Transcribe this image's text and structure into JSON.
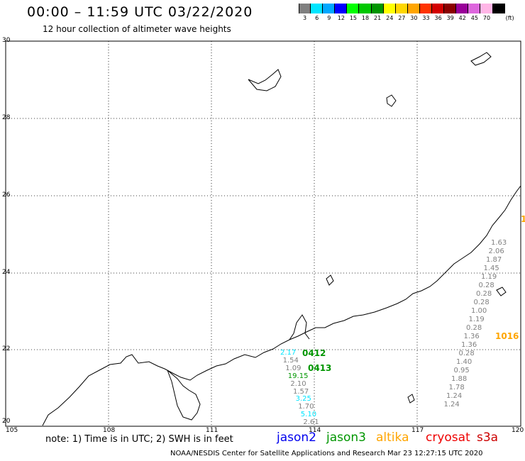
{
  "header": {
    "title": "00:00 – 11:59 UTC 03/22/2020",
    "subtitle": "12 hour collection of altimeter wave heights"
  },
  "legend": {
    "unit": "(ft)",
    "bins": [
      {
        "label": "3",
        "color": "#808080"
      },
      {
        "label": "6",
        "color": "#00e5ff"
      },
      {
        "label": "9",
        "color": "#00a8ff"
      },
      {
        "label": "12",
        "color": "#0000ff"
      },
      {
        "label": "15",
        "color": "#00ff00"
      },
      {
        "label": "18",
        "color": "#00c800"
      },
      {
        "label": "21",
        "color": "#009600"
      },
      {
        "label": "24",
        "color": "#ffff00"
      },
      {
        "label": "27",
        "color": "#ffd700"
      },
      {
        "label": "30",
        "color": "#ffa500"
      },
      {
        "label": "33",
        "color": "#ff3300"
      },
      {
        "label": "36",
        "color": "#d40000"
      },
      {
        "label": "39",
        "color": "#8b0000"
      },
      {
        "label": "42",
        "color": "#990099"
      },
      {
        "label": "45",
        "color": "#dd66dd"
      },
      {
        "label": "70",
        "color": "#ffb6e6"
      },
      {
        "label": "",
        "color": "#000000"
      }
    ]
  },
  "map": {
    "lon_ticks": [
      "105",
      "108",
      "111",
      "114",
      "117",
      "120"
    ],
    "lat_ticks": [
      "30",
      "28",
      "26",
      "24",
      "22",
      "20"
    ],
    "lon_range": [
      105,
      120
    ],
    "lat_range": [
      20,
      30
    ],
    "grid": true
  },
  "tracks": {
    "passes": [
      {
        "label": "0412",
        "color": "#009600"
      },
      {
        "label": "0413",
        "color": "#009600"
      },
      {
        "label": "1016",
        "color": "#ffa500"
      },
      {
        "label": "1",
        "color": "#ffa500"
      }
    ],
    "track_a": [
      {
        "v": "2.17",
        "c": "#00e5ff"
      },
      {
        "v": "1.54",
        "c": "#808080"
      },
      {
        "v": "1.09",
        "c": "#808080"
      },
      {
        "v": "19.15",
        "c": "#009600"
      },
      {
        "v": "2.10",
        "c": "#808080"
      },
      {
        "v": "1.57",
        "c": "#808080"
      },
      {
        "v": "3.25",
        "c": "#00e5ff"
      },
      {
        "v": "1.70",
        "c": "#808080"
      },
      {
        "v": "5.10",
        "c": "#00e5ff"
      },
      {
        "v": "2.61",
        "c": "#808080"
      }
    ],
    "track_b": [
      {
        "v": "1.63",
        "c": "#808080"
      },
      {
        "v": "2.06",
        "c": "#808080"
      },
      {
        "v": "1.87",
        "c": "#808080"
      },
      {
        "v": "1.45",
        "c": "#808080"
      },
      {
        "v": "1.19",
        "c": "#808080"
      },
      {
        "v": "0.28",
        "c": "#808080"
      },
      {
        "v": "0.28",
        "c": "#808080"
      },
      {
        "v": "0.28",
        "c": "#808080"
      },
      {
        "v": "1.00",
        "c": "#808080"
      },
      {
        "v": "1.19",
        "c": "#808080"
      },
      {
        "v": "0.28",
        "c": "#808080"
      },
      {
        "v": "1.36",
        "c": "#808080"
      },
      {
        "v": "1.36",
        "c": "#808080"
      },
      {
        "v": "0.28",
        "c": "#808080"
      },
      {
        "v": "1.40",
        "c": "#808080"
      },
      {
        "v": "0.95",
        "c": "#808080"
      },
      {
        "v": "1.88",
        "c": "#808080"
      },
      {
        "v": "1.78",
        "c": "#808080"
      },
      {
        "v": "1.24",
        "c": "#808080"
      },
      {
        "v": "1.24",
        "c": "#808080"
      }
    ]
  },
  "footer": {
    "note": "note: 1) Time is in UTC; 2) SWH is in feet",
    "satellites": [
      {
        "name": "jason2",
        "color": "#0000ee"
      },
      {
        "name": "jason3",
        "color": "#009600"
      },
      {
        "name": "altika",
        "color": "#ffa500"
      },
      {
        "name": "cryosat",
        "color": "#ee0000"
      },
      {
        "name": "s3a",
        "color": "#cc0000"
      }
    ],
    "credit": "NOAA/NESDIS Center for Satellite Applications and Research      Mar 23 12:27:15 UTC 2020"
  }
}
